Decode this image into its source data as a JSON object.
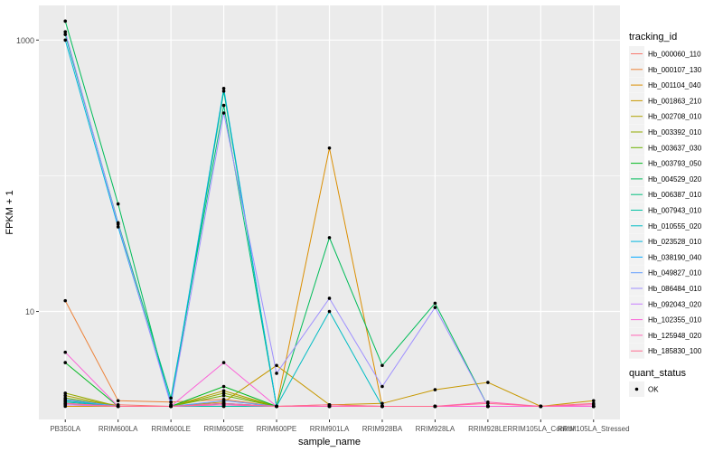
{
  "chart_data": {
    "type": "line",
    "xlabel": "sample_name",
    "ylabel": "FPKM + 1",
    "y_scale": "log10",
    "ylim": [
      1.6,
      1800
    ],
    "y_ticks": [
      10,
      1000
    ],
    "grid": true,
    "legend_position": "right",
    "categories": [
      "PB350LA",
      "RRIM600LA",
      "RRIM600LE",
      "RRIM600SE",
      "RRIM600PE",
      "RRIM901LA",
      "RRIM928BA",
      "RRIM928LA",
      "RRIM928LE",
      "RRIM105LA_Control",
      "RRIM105LA_Stressed"
    ],
    "legend": {
      "color_title": "tracking_id",
      "shape_title": "quant_status",
      "shape_entries": [
        "OK"
      ]
    },
    "series": [
      {
        "name": "Hb_000060_110",
        "color": "#F8766D",
        "values": [
          2.2,
          2.05,
          2.0,
          2.0,
          2.0,
          2.05,
          2.0,
          2.0,
          2.0,
          2.0,
          2.0
        ]
      },
      {
        "name": "Hb_000107_130",
        "color": "#EC8239",
        "values": [
          12.0,
          2.2,
          2.15,
          2.25,
          2.0,
          2.0,
          2.0,
          2.0,
          2.0,
          2.0,
          2.0
        ]
      },
      {
        "name": "Hb_001104_040",
        "color": "#DB8E00",
        "values": [
          2.0,
          2.0,
          2.0,
          2.0,
          2.0,
          160,
          2.0,
          2.0,
          2.0,
          2.0,
          2.0
        ]
      },
      {
        "name": "Hb_001863_210",
        "color": "#C79800",
        "values": [
          2.05,
          2.0,
          2.0,
          2.15,
          4.0,
          2.05,
          2.1,
          2.65,
          3.0,
          2.0,
          2.2
        ]
      },
      {
        "name": "Hb_002708_010",
        "color": "#AFA100",
        "values": [
          2.4,
          2.0,
          2.0,
          2.6,
          2.0,
          2.0,
          2.0,
          2.0,
          2.0,
          2.0,
          2.0
        ]
      },
      {
        "name": "Hb_003392_010",
        "color": "#93AA00",
        "values": [
          2.5,
          2.0,
          2.0,
          2.5,
          2.0,
          2.0,
          2.0,
          2.0,
          2.0,
          2.0,
          2.0
        ]
      },
      {
        "name": "Hb_003637_030",
        "color": "#6BB100",
        "values": [
          2.3,
          2.0,
          2.0,
          2.4,
          2.0,
          2.0,
          2.0,
          2.0,
          2.0,
          2.0,
          2.0
        ]
      },
      {
        "name": "Hb_003793_050",
        "color": "#00B81F",
        "values": [
          4.2,
          2.0,
          2.0,
          2.8,
          2.0,
          2.0,
          2.0,
          2.0,
          2.0,
          2.0,
          2.0
        ]
      },
      {
        "name": "Hb_004529_020",
        "color": "#00BC59",
        "values": [
          1380,
          62,
          2.05,
          420,
          2.0,
          35,
          4.0,
          11.5,
          2.0,
          2.0,
          2.0
        ]
      },
      {
        "name": "Hb_006387_010",
        "color": "#00BF7D",
        "values": [
          1100,
          45,
          2.3,
          330,
          2.0,
          2.0,
          2.0,
          2.0,
          2.0,
          2.0,
          2.0
        ]
      },
      {
        "name": "Hb_007943_010",
        "color": "#00C0A3",
        "values": [
          2.15,
          2.0,
          2.0,
          2.0,
          2.0,
          2.0,
          2.0,
          2.0,
          2.0,
          2.0,
          2.0
        ]
      },
      {
        "name": "Hb_010555_020",
        "color": "#00BCC4",
        "values": [
          2.2,
          2.0,
          2.0,
          2.1,
          2.0,
          10,
          2.0,
          2.0,
          2.0,
          2.0,
          2.0
        ]
      },
      {
        "name": "Hb_023528_010",
        "color": "#00B5E0",
        "values": [
          1000,
          42,
          2.15,
          440,
          2.0,
          2.0,
          2.0,
          2.0,
          2.0,
          2.0,
          2.0
        ]
      },
      {
        "name": "Hb_038190_040",
        "color": "#00A9FF",
        "values": [
          2.1,
          2.0,
          2.0,
          2.1,
          2.0,
          2.0,
          2.0,
          2.0,
          2.0,
          2.0,
          2.0
        ]
      },
      {
        "name": "Hb_049827_010",
        "color": "#619CFF",
        "values": [
          2.25,
          2.0,
          2.0,
          2.2,
          2.0,
          2.0,
          2.0,
          2.0,
          2.0,
          2.0,
          2.0
        ]
      },
      {
        "name": "Hb_086484_010",
        "color": "#9E8FFF",
        "values": [
          1150,
          44,
          2.05,
          290,
          3.5,
          12.5,
          2.8,
          10.7,
          2.0,
          2.0,
          2.0
        ]
      },
      {
        "name": "Hb_092043_020",
        "color": "#C77CFF",
        "values": [
          2.05,
          2.0,
          2.0,
          2.05,
          2.0,
          2.0,
          2.0,
          2.0,
          2.0,
          2.0,
          2.0
        ]
      },
      {
        "name": "Hb_102355_010",
        "color": "#FB61D7",
        "values": [
          5.0,
          2.0,
          2.0,
          4.2,
          2.0,
          2.0,
          2.0,
          2.0,
          2.0,
          2.0,
          2.0
        ]
      },
      {
        "name": "Hb_125948_020",
        "color": "#FF63B5",
        "values": [
          2.1,
          2.0,
          2.0,
          2.05,
          2.0,
          2.0,
          2.0,
          2.0,
          2.15,
          2.0,
          2.05
        ]
      },
      {
        "name": "Hb_185830_100",
        "color": "#FF6C90",
        "values": [
          2.1,
          2.0,
          2.0,
          2.1,
          2.0,
          2.05,
          2.0,
          2.0,
          2.1,
          2.0,
          2.1
        ]
      }
    ]
  }
}
